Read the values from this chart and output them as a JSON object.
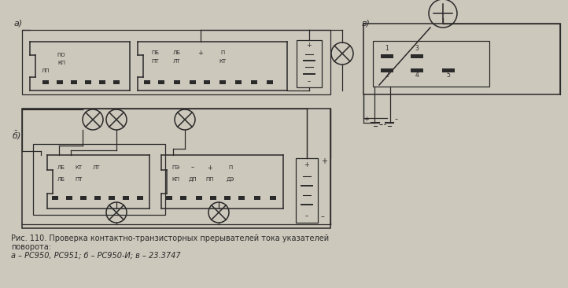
{
  "bg_color": "#cdc8bc",
  "line_color": "#2a2a2a",
  "caption_line1": "Рис. 110. Проверка контактно-транзисторных прерывателей тока указателей",
  "caption_line2": "поворота:",
  "caption_line3": "а – РС950, РС951; б – РС950-И; в – 23.3747",
  "label_a": "а)",
  "label_b": "б)",
  "label_v": "в)"
}
